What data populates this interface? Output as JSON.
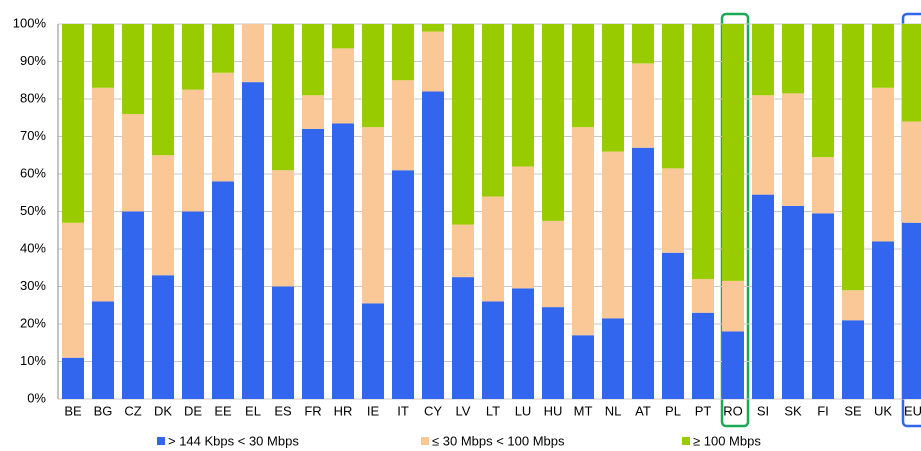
{
  "chart_data": {
    "type": "stacked_bar",
    "categories": [
      "BE",
      "BG",
      "CZ",
      "DK",
      "DE",
      "EE",
      "EL",
      "ES",
      "FR",
      "HR",
      "IE",
      "IT",
      "CY",
      "LV",
      "LT",
      "LU",
      "HU",
      "MT",
      "NL",
      "AT",
      "PL",
      "PT",
      "RO",
      "SI",
      "SK",
      "FI",
      "SE",
      "UK",
      "EU"
    ],
    "series": [
      {
        "name": "> 144 Kbps < 30 Mbps",
        "color": "#3366ee",
        "values": [
          11,
          26,
          50,
          33,
          50,
          58,
          84.5,
          30,
          72,
          73.5,
          25.5,
          61,
          82,
          32.5,
          26,
          29.5,
          24.5,
          17,
          21.5,
          67,
          39,
          23,
          18,
          54.5,
          51.5,
          49.5,
          21,
          42,
          47
        ]
      },
      {
        "name": "≤ 30 Mbps < 100 Mbps",
        "color": "#fac896",
        "values": [
          36,
          57,
          26,
          32,
          32.5,
          29,
          15.5,
          31,
          9,
          20,
          47,
          24,
          16,
          14,
          28,
          32.5,
          23,
          55.5,
          44.5,
          22.5,
          22.5,
          9,
          13.5,
          26.5,
          30,
          15,
          8,
          41,
          27
        ]
      },
      {
        "name": "≥ 100 Mbps",
        "color": "#99cc00",
        "values": [
          53,
          17,
          24,
          35,
          17.5,
          13,
          0,
          39,
          19,
          6.5,
          27.5,
          15,
          2,
          53.5,
          46,
          38,
          52.5,
          27.5,
          34,
          10.5,
          38.5,
          68,
          68.5,
          19,
          18.5,
          35.5,
          71,
          17,
          26
        ]
      }
    ],
    "ylim": [
      0,
      100
    ],
    "yticks": [
      {
        "value": 0,
        "label": "0%"
      },
      {
        "value": 10,
        "label": "10%"
      },
      {
        "value": 20,
        "label": "20%"
      },
      {
        "value": 30,
        "label": "30%"
      },
      {
        "value": 40,
        "label": "40%"
      },
      {
        "value": 50,
        "label": "50%"
      },
      {
        "value": 60,
        "label": "60%"
      },
      {
        "value": 70,
        "label": "70%"
      },
      {
        "value": 80,
        "label": "80%"
      },
      {
        "value": 90,
        "label": "90%"
      },
      {
        "value": 100,
        "label": "100%"
      }
    ],
    "grid": true
  }
}
